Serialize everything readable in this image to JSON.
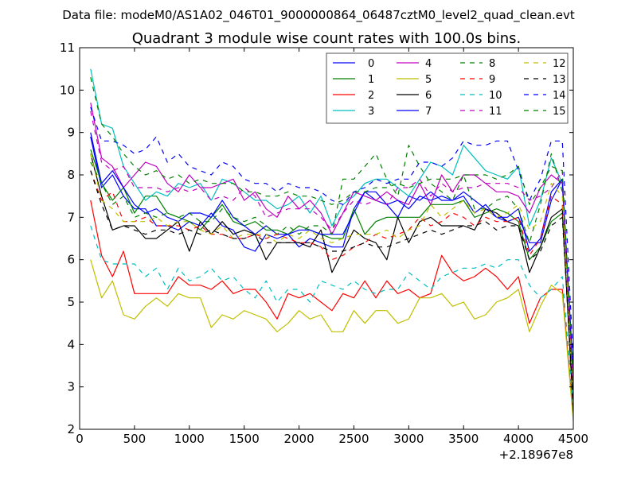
{
  "header": {
    "data_file": "Data file: modeM0/AS1A02_046T01_9000000864_06487cztM0_level2_quad_clean.evt"
  },
  "chart_data": {
    "type": "line",
    "title": "Quadrant 3 module wise count rates with 100.0s bins.",
    "xlabel": "",
    "ylabel": "",
    "x_offset_label": "+2.18967e8",
    "xlim": [
      0,
      4500
    ],
    "ylim": [
      2,
      11
    ],
    "xticks": [
      0,
      500,
      1000,
      1500,
      2000,
      2500,
      3000,
      3500,
      4000,
      4500
    ],
    "yticks": [
      2,
      3,
      4,
      5,
      6,
      7,
      8,
      9,
      10,
      11
    ],
    "legend_position": "top-right",
    "legend_columns": 4,
    "x": [
      100,
      200,
      300,
      400,
      500,
      600,
      700,
      800,
      900,
      1000,
      1100,
      1200,
      1300,
      1400,
      1500,
      1600,
      1700,
      1800,
      1900,
      2000,
      2100,
      2200,
      2300,
      2400,
      2500,
      2600,
      2700,
      2800,
      2900,
      3000,
      3100,
      3200,
      3300,
      3400,
      3500,
      3600,
      3700,
      3800,
      3900,
      4000,
      4100,
      4200,
      4300,
      4400,
      4500
    ],
    "series": [
      {
        "name": "0",
        "color": "#0000ff",
        "dash": "solid",
        "values": [
          8.9,
          7.7,
          8.0,
          7.5,
          7.2,
          7.2,
          6.8,
          6.8,
          6.7,
          6.9,
          6.8,
          7.1,
          6.8,
          6.7,
          6.3,
          6.2,
          6.6,
          6.5,
          6.6,
          6.3,
          6.5,
          6.4,
          6.3,
          6.3,
          7.2,
          7.6,
          7.4,
          7.3,
          7.0,
          7.5,
          7.4,
          7.6,
          7.4,
          7.4,
          7.5,
          7.1,
          7.3,
          7.0,
          6.9,
          7.0,
          6.4,
          6.4,
          7.4,
          7.9,
          3.0
        ]
      },
      {
        "name": "1",
        "color": "#008000",
        "dash": "solid",
        "values": [
          8.6,
          7.8,
          7.4,
          7.7,
          7.1,
          7.5,
          7.5,
          7.1,
          7.0,
          6.9,
          6.7,
          7.0,
          7.3,
          6.9,
          6.8,
          6.9,
          6.7,
          6.7,
          6.6,
          6.8,
          6.7,
          6.6,
          6.5,
          6.5,
          7.2,
          6.6,
          6.9,
          7.0,
          7.0,
          7.0,
          7.0,
          7.3,
          7.3,
          7.3,
          7.4,
          7.0,
          7.1,
          7.2,
          7.1,
          6.9,
          6.0,
          6.3,
          6.9,
          7.1,
          2.5
        ]
      },
      {
        "name": "2",
        "color": "#ff0000",
        "dash": "solid",
        "values": [
          7.4,
          6.1,
          5.6,
          6.2,
          5.2,
          5.2,
          5.2,
          5.2,
          5.6,
          5.4,
          5.4,
          5.3,
          5.5,
          5.2,
          5.3,
          5.3,
          5.0,
          4.6,
          5.2,
          5.1,
          5.2,
          5.0,
          4.8,
          5.2,
          5.1,
          5.5,
          5.1,
          5.5,
          5.2,
          5.3,
          5.1,
          5.2,
          6.1,
          5.7,
          5.5,
          5.6,
          5.8,
          5.6,
          5.3,
          5.6,
          4.5,
          5.1,
          5.3,
          5.3,
          2.3
        ]
      },
      {
        "name": "3",
        "color": "#00bfbf",
        "dash": "solid",
        "values": [
          10.5,
          9.2,
          9.1,
          8.2,
          7.8,
          7.4,
          7.6,
          7.5,
          7.8,
          7.7,
          7.8,
          7.4,
          7.9,
          7.8,
          7.6,
          7.4,
          7.4,
          7.2,
          7.3,
          7.5,
          7.1,
          7.5,
          6.8,
          7.3,
          7.5,
          7.8,
          7.9,
          7.9,
          7.7,
          7.5,
          7.9,
          8.3,
          8.2,
          8.0,
          8.7,
          8.4,
          8.1,
          8.0,
          7.9,
          8.2,
          6.8,
          7.4,
          8.4,
          7.8,
          3.2
        ]
      },
      {
        "name": "4",
        "color": "#bf00bf",
        "dash": "solid",
        "values": [
          9.7,
          8.4,
          8.2,
          7.7,
          8.0,
          8.3,
          8.2,
          7.8,
          7.6,
          8.0,
          7.7,
          7.7,
          7.8,
          7.9,
          7.4,
          7.6,
          7.2,
          7.0,
          7.5,
          7.2,
          7.4,
          7.1,
          6.6,
          7.1,
          7.6,
          7.5,
          7.4,
          7.6,
          7.4,
          7.3,
          7.8,
          7.3,
          8.0,
          7.6,
          8.0,
          8.0,
          7.8,
          7.6,
          7.6,
          7.5,
          7.1,
          7.7,
          8.0,
          7.8,
          2.9
        ]
      },
      {
        "name": "5",
        "color": "#bfbf00",
        "dash": "solid",
        "values": [
          6.0,
          5.1,
          5.5,
          4.7,
          4.6,
          4.9,
          5.1,
          4.9,
          5.2,
          5.1,
          5.1,
          4.4,
          4.7,
          4.6,
          4.8,
          4.7,
          4.6,
          4.3,
          4.5,
          4.8,
          4.6,
          4.7,
          4.3,
          4.3,
          4.8,
          4.5,
          4.8,
          4.8,
          4.5,
          4.6,
          5.1,
          5.1,
          5.2,
          4.9,
          5.0,
          4.6,
          4.7,
          5.0,
          5.1,
          5.3,
          4.3,
          4.9,
          5.4,
          5.2,
          2.2
        ]
      },
      {
        "name": "6",
        "color": "#000000",
        "dash": "solid",
        "values": [
          8.5,
          7.5,
          6.7,
          6.8,
          6.8,
          6.5,
          6.5,
          6.7,
          6.9,
          6.2,
          6.9,
          6.6,
          6.9,
          6.6,
          6.7,
          6.6,
          6.0,
          6.4,
          6.4,
          6.4,
          6.3,
          6.7,
          5.7,
          6.2,
          6.7,
          6.5,
          6.4,
          6.0,
          7.0,
          6.4,
          6.9,
          7.0,
          6.8,
          6.8,
          6.8,
          6.7,
          7.2,
          7.1,
          6.9,
          6.8,
          5.7,
          6.3,
          7.0,
          7.2,
          2.4
        ]
      },
      {
        "name": "7",
        "color": "#0000ff",
        "dash": "solid",
        "values": [
          9.0,
          7.8,
          8.1,
          7.7,
          7.3,
          7.1,
          7.2,
          7.0,
          6.9,
          7.1,
          7.1,
          7.0,
          7.4,
          7.0,
          6.8,
          6.6,
          6.8,
          6.6,
          6.6,
          6.7,
          6.7,
          6.6,
          6.6,
          6.6,
          7.1,
          7.6,
          7.6,
          7.3,
          7.4,
          7.2,
          7.5,
          7.4,
          7.5,
          7.4,
          7.6,
          7.4,
          7.2,
          7.0,
          7.0,
          7.2,
          6.2,
          6.5,
          7.6,
          7.9,
          3.3
        ]
      },
      {
        "name": "8",
        "color": "#008000",
        "dash": "dashed",
        "values": [
          8.3,
          7.8,
          7.3,
          7.5,
          7.0,
          7.1,
          7.0,
          7.1,
          7.0,
          7.1,
          6.9,
          6.9,
          7.2,
          7.0,
          6.9,
          7.0,
          6.8,
          6.6,
          6.8,
          6.6,
          6.8,
          6.8,
          6.6,
          7.9,
          7.9,
          8.2,
          8.5,
          7.9,
          7.5,
          8.7,
          8.2,
          7.8,
          7.6,
          7.4,
          8.0,
          7.2,
          7.2,
          7.4,
          7.5,
          7.2,
          6.4,
          7.3,
          8.5,
          7.6,
          2.5
        ]
      },
      {
        "name": "9",
        "color": "#ff0000",
        "dash": "dashed",
        "values": [
          8.1,
          7.4,
          7.6,
          6.9,
          6.9,
          7.0,
          6.8,
          6.8,
          6.8,
          6.7,
          6.8,
          6.6,
          6.6,
          6.5,
          6.5,
          6.6,
          6.5,
          6.6,
          6.5,
          6.4,
          6.4,
          6.3,
          6.0,
          6.1,
          6.3,
          6.4,
          6.6,
          6.5,
          6.6,
          6.7,
          7.0,
          6.8,
          6.9,
          7.1,
          7.0,
          6.8,
          7.0,
          6.9,
          6.9,
          7.0,
          6.1,
          6.5,
          7.5,
          7.3,
          2.6
        ]
      },
      {
        "name": "10",
        "color": "#00bfbf",
        "dash": "dashed",
        "values": [
          6.8,
          6.0,
          5.9,
          5.9,
          5.9,
          5.6,
          5.8,
          5.3,
          5.8,
          5.5,
          5.6,
          5.8,
          5.5,
          5.6,
          5.3,
          5.1,
          5.5,
          5.0,
          5.3,
          5.3,
          5.0,
          5.5,
          5.4,
          5.3,
          5.5,
          5.3,
          5.2,
          5.3,
          5.3,
          5.7,
          5.5,
          5.3,
          5.6,
          5.7,
          5.8,
          5.8,
          5.9,
          5.8,
          6.0,
          6.0,
          5.4,
          5.1,
          5.3,
          5.6,
          2.5
        ]
      },
      {
        "name": "11",
        "color": "#bf00bf",
        "dash": "dashed",
        "values": [
          9.5,
          8.3,
          8.1,
          8.2,
          7.7,
          7.7,
          7.7,
          7.6,
          7.7,
          7.6,
          7.7,
          7.4,
          7.5,
          7.4,
          7.7,
          7.5,
          7.0,
          7.1,
          7.2,
          7.2,
          7.2,
          7.0,
          6.7,
          7.1,
          7.4,
          7.3,
          7.4,
          7.3,
          7.7,
          7.7,
          7.9,
          7.5,
          7.8,
          7.6,
          7.7,
          7.7,
          7.8,
          7.8,
          7.8,
          7.7,
          7.4,
          7.5,
          7.7,
          8.1,
          3.0
        ]
      },
      {
        "name": "12",
        "color": "#bfbf00",
        "dash": "dashed",
        "values": [
          8.5,
          7.4,
          7.2,
          6.9,
          6.9,
          6.9,
          7.0,
          6.8,
          6.9,
          6.9,
          6.7,
          6.6,
          6.8,
          6.5,
          6.6,
          6.6,
          6.6,
          6.4,
          6.6,
          6.5,
          6.7,
          6.5,
          6.4,
          6.5,
          6.6,
          6.6,
          6.6,
          6.7,
          6.5,
          6.7,
          6.8,
          7.3,
          7.0,
          7.2,
          7.4,
          7.1,
          7.2,
          7.0,
          7.1,
          7.3,
          6.7,
          6.9,
          7.8,
          7.5,
          2.7
        ]
      },
      {
        "name": "13",
        "color": "#000000",
        "dash": "dashed",
        "values": [
          8.1,
          7.3,
          6.7,
          6.8,
          6.7,
          6.6,
          6.7,
          6.7,
          6.6,
          6.7,
          6.6,
          6.7,
          6.6,
          6.5,
          6.5,
          6.6,
          6.4,
          6.4,
          6.4,
          6.4,
          6.4,
          6.3,
          6.2,
          6.2,
          6.3,
          6.4,
          6.3,
          6.3,
          6.4,
          6.5,
          6.6,
          6.7,
          6.6,
          6.7,
          6.8,
          6.8,
          6.9,
          6.7,
          6.8,
          6.8,
          6.0,
          6.2,
          6.8,
          7.0,
          2.6
        ]
      },
      {
        "name": "14",
        "color": "#0000ff",
        "dash": "dashed",
        "values": [
          9.6,
          8.8,
          8.8,
          8.7,
          8.5,
          8.6,
          8.9,
          8.3,
          8.5,
          8.2,
          8.1,
          8.0,
          8.3,
          8.2,
          7.9,
          7.8,
          7.8,
          7.6,
          7.8,
          7.7,
          7.7,
          7.6,
          7.4,
          7.3,
          7.6,
          7.7,
          7.9,
          7.8,
          7.9,
          7.9,
          8.3,
          8.3,
          8.2,
          8.4,
          8.8,
          8.7,
          8.7,
          8.8,
          8.8,
          8.1,
          7.4,
          7.9,
          8.8,
          8.8,
          3.6
        ]
      },
      {
        "name": "15",
        "color": "#008000",
        "dash": "dashed",
        "values": [
          10.3,
          9.2,
          8.9,
          8.5,
          8.2,
          8.0,
          8.1,
          7.9,
          8.0,
          7.8,
          7.9,
          7.8,
          7.8,
          7.8,
          7.6,
          7.6,
          7.5,
          7.5,
          7.6,
          7.5,
          7.5,
          7.4,
          7.3,
          7.4,
          7.6,
          7.6,
          7.7,
          7.7,
          7.8,
          7.7,
          7.8,
          7.9,
          7.9,
          7.9,
          8.0,
          8.0,
          8.0,
          7.9,
          8.0,
          8.2,
          7.3,
          7.7,
          8.2,
          8.1,
          3.1
        ]
      }
    ]
  }
}
